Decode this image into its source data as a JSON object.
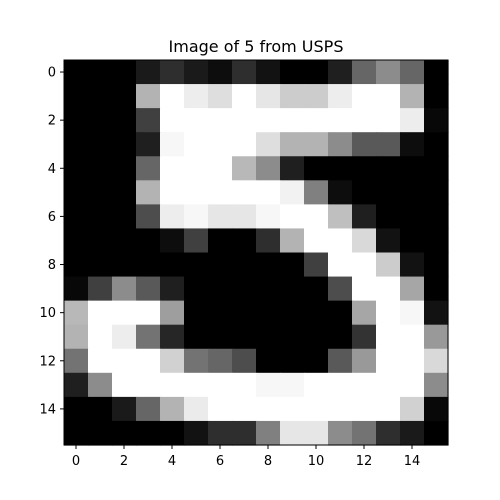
{
  "chart_data": {
    "type": "heatmap",
    "title": "Image of 5 from USPS",
    "xlabel": "",
    "ylabel": "",
    "colormap": "gray",
    "value_range": [
      0,
      1
    ],
    "rows": 16,
    "cols": 16,
    "x_ticks": [
      0,
      2,
      4,
      6,
      8,
      10,
      12,
      14
    ],
    "y_ticks": [
      0,
      2,
      4,
      6,
      8,
      10,
      12,
      14
    ],
    "y_axis_inverted": true,
    "grid": false,
    "values": [
      [
        0.0,
        0.0,
        0.0,
        0.1,
        0.18,
        0.1,
        0.05,
        0.18,
        0.07,
        0.0,
        0.0,
        0.12,
        0.4,
        0.55,
        0.4,
        0.0
      ],
      [
        0.0,
        0.0,
        0.0,
        0.7,
        1.0,
        0.93,
        0.87,
        1.0,
        0.9,
        0.8,
        0.8,
        0.93,
        1.0,
        1.0,
        0.7,
        0.0
      ],
      [
        0.0,
        0.0,
        0.0,
        0.25,
        1.0,
        1.0,
        1.0,
        1.0,
        1.0,
        1.0,
        1.0,
        1.0,
        1.0,
        1.0,
        0.93,
        0.03
      ],
      [
        0.0,
        0.0,
        0.0,
        0.12,
        0.97,
        1.0,
        1.0,
        1.0,
        0.87,
        0.7,
        0.7,
        0.55,
        0.35,
        0.35,
        0.05,
        0.0
      ],
      [
        0.0,
        0.0,
        0.0,
        0.4,
        1.0,
        1.0,
        1.0,
        0.72,
        0.55,
        0.12,
        0.0,
        0.0,
        0.0,
        0.0,
        0.0,
        0.0
      ],
      [
        0.0,
        0.0,
        0.0,
        0.7,
        1.0,
        1.0,
        1.0,
        1.0,
        1.0,
        0.95,
        0.5,
        0.05,
        0.0,
        0.0,
        0.0,
        0.0
      ],
      [
        0.0,
        0.0,
        0.0,
        0.3,
        0.93,
        0.97,
        0.9,
        0.9,
        0.97,
        1.0,
        1.0,
        0.75,
        0.12,
        0.0,
        0.0,
        0.0
      ],
      [
        0.0,
        0.0,
        0.0,
        0.0,
        0.05,
        0.25,
        0.0,
        0.0,
        0.18,
        0.7,
        1.0,
        1.0,
        0.85,
        0.07,
        0.0,
        0.0
      ],
      [
        0.0,
        0.0,
        0.0,
        0.0,
        0.0,
        0.0,
        0.0,
        0.0,
        0.0,
        0.0,
        0.25,
        1.0,
        1.0,
        0.8,
        0.07,
        0.0
      ],
      [
        0.03,
        0.25,
        0.55,
        0.35,
        0.12,
        0.0,
        0.0,
        0.0,
        0.0,
        0.0,
        0.0,
        0.3,
        1.0,
        1.0,
        0.65,
        0.0
      ],
      [
        0.72,
        1.0,
        1.0,
        1.0,
        0.62,
        0.0,
        0.0,
        0.0,
        0.0,
        0.0,
        0.0,
        0.0,
        0.65,
        1.0,
        0.97,
        0.07
      ],
      [
        0.7,
        1.0,
        0.93,
        0.45,
        0.15,
        0.0,
        0.0,
        0.0,
        0.0,
        0.0,
        0.0,
        0.0,
        0.2,
        1.0,
        1.0,
        0.6
      ],
      [
        0.45,
        1.0,
        1.0,
        1.0,
        0.82,
        0.45,
        0.4,
        0.3,
        0.0,
        0.0,
        0.0,
        0.35,
        0.6,
        1.0,
        1.0,
        0.85
      ],
      [
        0.12,
        0.55,
        1.0,
        1.0,
        1.0,
        1.0,
        1.0,
        1.0,
        0.97,
        0.97,
        1.0,
        1.0,
        1.0,
        1.0,
        1.0,
        0.55
      ],
      [
        0.0,
        0.0,
        0.1,
        0.4,
        0.7,
        0.92,
        1.0,
        1.0,
        1.0,
        1.0,
        1.0,
        1.0,
        1.0,
        1.0,
        0.82,
        0.03
      ],
      [
        0.0,
        0.0,
        0.0,
        0.0,
        0.0,
        0.07,
        0.18,
        0.18,
        0.5,
        0.9,
        0.9,
        0.55,
        0.45,
        0.18,
        0.1,
        0.0
      ]
    ]
  }
}
